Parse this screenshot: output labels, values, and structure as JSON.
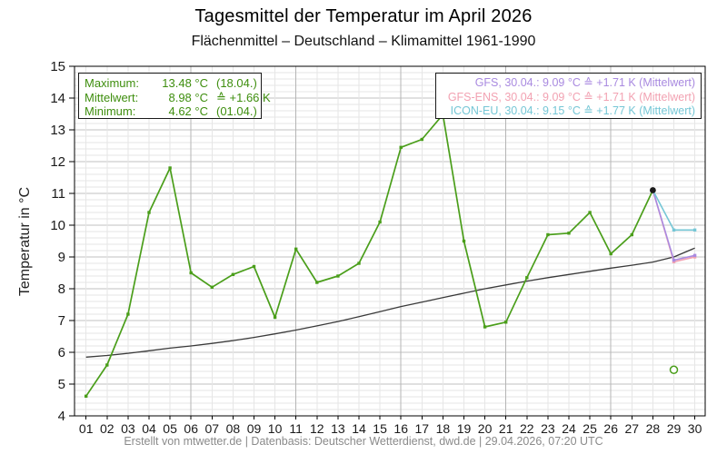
{
  "header": {
    "title": "Tagesmittel der Temperatur im April 2026",
    "subtitle": "Flächenmittel – Deutschland – Klimamittel 1961-1990"
  },
  "legends": {
    "stats": {
      "text_color": "#3e8e0e",
      "rows": [
        {
          "label": "Maximum:",
          "value": "13.48 °C",
          "suffix": "(18.04.)"
        },
        {
          "label": "Mittelwert:",
          "value": "8.98 °C",
          "suffix": "≙ +1.66 K"
        },
        {
          "label": "Minimum:",
          "value": "4.62 °C",
          "suffix": "(01.04.)"
        }
      ]
    },
    "forecasts": {
      "rows": [
        {
          "text": "GFS, 30.04.: 9.09 °C ≙ +1.71 K (Mittelwert)",
          "color": "#a98ae0"
        },
        {
          "text": "GFS-ENS, 30.04.: 9.09 °C ≙ +1.71 K (Mittelwert)",
          "color": "#f2a2b2"
        },
        {
          "text": "ICON-EU, 30.04.: 9.15 °C ≙ +1.77 K (Mittelwert)",
          "color": "#76c7d6"
        }
      ]
    }
  },
  "footer": {
    "text": "Erstellt von mtwetter.de | Datenbasis: Deutscher Wetterdienst, dwd.de | 29.04.2026, 07:20 UTC"
  },
  "chart_data": {
    "type": "line",
    "title": "Tagesmittel der Temperatur im April 2026",
    "subtitle": "Flächenmittel – Deutschland – Klimamittel 1961-1990",
    "xlabel": "",
    "ylabel": "Temperatur in °C",
    "categories": [
      "01",
      "02",
      "03",
      "04",
      "05",
      "06",
      "07",
      "08",
      "09",
      "10",
      "11",
      "12",
      "13",
      "14",
      "15",
      "16",
      "17",
      "18",
      "19",
      "20",
      "21",
      "22",
      "23",
      "24",
      "25",
      "26",
      "27",
      "28",
      "29",
      "30"
    ],
    "ylim": [
      4,
      15
    ],
    "y_major_step": 1,
    "y_minor_step": 0.2,
    "x_major_days": [
      6,
      11,
      16,
      21,
      26
    ],
    "grid": true,
    "legend_position": "top",
    "series": [
      {
        "name": "Klimamittel 1961-1990",
        "color": "#3a3a3a",
        "width": 1.3,
        "marker": "none",
        "days": [
          1,
          2,
          3,
          4,
          5,
          6,
          7,
          8,
          9,
          10,
          11,
          12,
          13,
          14,
          15,
          16,
          17,
          18,
          19,
          20,
          21,
          22,
          23,
          24,
          25,
          26,
          27,
          28,
          29,
          30
        ],
        "values": [
          5.85,
          5.9,
          5.97,
          6.05,
          6.13,
          6.2,
          6.28,
          6.37,
          6.47,
          6.58,
          6.7,
          6.83,
          6.97,
          7.12,
          7.28,
          7.44,
          7.58,
          7.72,
          7.86,
          8.0,
          8.12,
          8.24,
          8.35,
          8.45,
          8.55,
          8.65,
          8.74,
          8.84,
          9.0,
          9.28
        ]
      },
      {
        "name": "GFS-ENS Prognose",
        "color": "#f2a2b2",
        "width": 1.6,
        "marker": "square",
        "days": [
          28,
          29,
          30
        ],
        "values": [
          11.1,
          8.85,
          9.0
        ]
      },
      {
        "name": "GFS Prognose",
        "color": "#a98ae0",
        "width": 1.6,
        "marker": "square",
        "days": [
          28,
          29,
          30
        ],
        "values": [
          11.1,
          8.9,
          9.05
        ]
      },
      {
        "name": "ICON-EU Prognose",
        "color": "#76c7d6",
        "width": 1.6,
        "marker": "square",
        "days": [
          28,
          29,
          30
        ],
        "values": [
          11.1,
          9.85,
          9.85
        ]
      },
      {
        "name": "Tagesmittel April 2026",
        "color": "#4a9e1a",
        "width": 1.7,
        "marker": "square",
        "days": [
          1,
          2,
          3,
          4,
          5,
          6,
          7,
          8,
          9,
          10,
          11,
          12,
          13,
          14,
          15,
          16,
          17,
          18,
          19,
          20,
          21,
          22,
          23,
          24,
          25,
          26,
          27,
          28
        ],
        "values": [
          4.62,
          5.6,
          7.2,
          10.4,
          11.8,
          8.5,
          8.05,
          8.45,
          8.7,
          7.1,
          9.25,
          8.2,
          8.4,
          8.8,
          10.1,
          12.45,
          12.7,
          13.48,
          9.5,
          6.8,
          6.95,
          8.35,
          9.7,
          9.75,
          10.4,
          9.1,
          9.7,
          11.1
        ]
      }
    ],
    "extra_points": [
      {
        "name": "latest-value-dot",
        "day": 28,
        "value": 11.1,
        "style": "filled-circle",
        "color": "#1a1a1a"
      },
      {
        "name": "partial-day-circle",
        "day": 29,
        "value": 5.45,
        "style": "open-circle",
        "color": "#4a9e1a"
      }
    ]
  }
}
